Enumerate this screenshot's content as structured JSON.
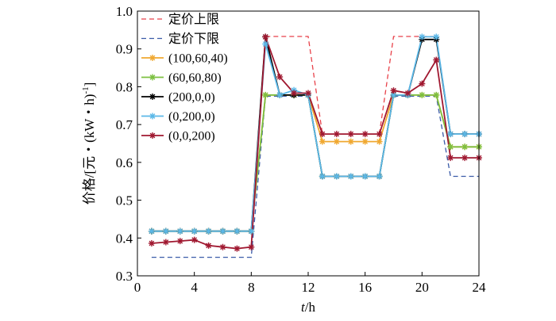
{
  "chart_data": {
    "type": "line",
    "xlabel_italic": "t",
    "xlabel_unit": "/h",
    "ylabel_main": "价格/[元・(kW・h)",
    "ylabel_sup": "-1",
    "ylabel_close": "]",
    "xlim": [
      0,
      24
    ],
    "ylim": [
      0.3,
      1.0
    ],
    "xticks": [
      0,
      4,
      8,
      12,
      16,
      20,
      24
    ],
    "xtick_labels": [
      "0",
      "4",
      "8",
      "12",
      "16",
      "20",
      "24"
    ],
    "yticks": [
      0.3,
      0.4,
      0.5,
      0.6,
      0.7,
      0.8,
      0.9,
      1.0
    ],
    "ytick_labels": [
      "0.3",
      "0.4",
      "0.5",
      "0.6",
      "0.7",
      "0.8",
      "0.9",
      "1.0"
    ],
    "grid": false,
    "legend_position": "top-left",
    "x": [
      1,
      2,
      3,
      4,
      5,
      6,
      7,
      8,
      9,
      10,
      11,
      12,
      13,
      14,
      15,
      16,
      17,
      18,
      19,
      20,
      21,
      22,
      23,
      24
    ],
    "bounds": [
      {
        "name": "定价上限",
        "color": "#e8424a",
        "values": [
          null,
          null,
          null,
          null,
          null,
          null,
          null,
          null,
          0.933,
          0.933,
          0.933,
          0.933,
          0.675,
          0.675,
          0.675,
          0.675,
          0.675,
          0.933,
          0.933,
          0.933,
          0.933,
          0.675,
          0.675,
          0.675
        ]
      },
      {
        "name": "定价下限",
        "color": "#3a5ba8",
        "values": [
          0.349,
          0.349,
          0.349,
          0.349,
          0.349,
          0.349,
          0.349,
          0.349,
          0.775,
          0.775,
          0.775,
          0.775,
          0.563,
          0.563,
          0.563,
          0.563,
          0.563,
          0.775,
          0.775,
          0.775,
          0.775,
          0.563,
          0.563,
          0.563
        ]
      }
    ],
    "series": [
      {
        "name": "(100,60,40)",
        "color": "#f0a830",
        "values": [
          0.418,
          0.418,
          0.418,
          0.418,
          0.418,
          0.418,
          0.418,
          0.418,
          0.778,
          0.778,
          0.778,
          0.778,
          0.655,
          0.655,
          0.655,
          0.655,
          0.655,
          0.778,
          0.778,
          0.778,
          0.778,
          0.641,
          0.641,
          0.641
        ]
      },
      {
        "name": "(60,60,80)",
        "color": "#7cc040",
        "values": [
          0.418,
          0.418,
          0.418,
          0.418,
          0.418,
          0.418,
          0.418,
          0.418,
          0.778,
          0.778,
          0.778,
          0.778,
          0.563,
          0.563,
          0.563,
          0.563,
          0.563,
          0.778,
          0.778,
          0.778,
          0.778,
          0.641,
          0.641,
          0.641
        ]
      },
      {
        "name": "(200,0,0)",
        "color": "#000000",
        "values": [
          0.418,
          0.418,
          0.418,
          0.418,
          0.418,
          0.418,
          0.418,
          0.418,
          0.932,
          0.778,
          0.778,
          0.778,
          0.563,
          0.563,
          0.563,
          0.563,
          0.563,
          0.778,
          0.778,
          0.925,
          0.925,
          0.675,
          0.675,
          0.675
        ]
      },
      {
        "name": "(0,200,0)",
        "color": "#5bb8e8",
        "values": [
          0.418,
          0.418,
          0.418,
          0.418,
          0.418,
          0.418,
          0.418,
          0.418,
          0.913,
          0.778,
          0.791,
          0.778,
          0.563,
          0.563,
          0.563,
          0.563,
          0.563,
          0.778,
          0.778,
          0.932,
          0.932,
          0.675,
          0.675,
          0.675
        ]
      },
      {
        "name": "(0,0,200)",
        "color": "#a01830",
        "values": [
          0.386,
          0.389,
          0.392,
          0.395,
          0.38,
          0.376,
          0.372,
          0.376,
          0.932,
          0.826,
          0.783,
          0.783,
          0.675,
          0.675,
          0.675,
          0.675,
          0.675,
          0.79,
          0.783,
          0.808,
          0.871,
          0.612,
          0.612,
          0.612
        ]
      }
    ]
  }
}
